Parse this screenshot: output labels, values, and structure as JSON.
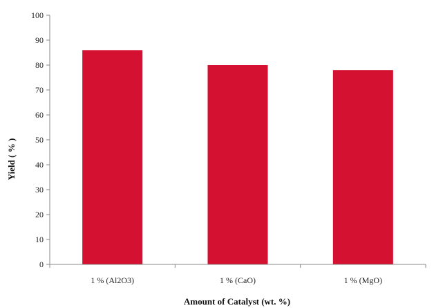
{
  "chart_data": {
    "type": "bar",
    "categories": [
      "1 % (Al2O3)",
      "1 % (CaO)",
      "1 % (MgO)"
    ],
    "values": [
      86,
      80,
      78
    ],
    "title": "",
    "xlabel": "Amount of Catalyst (wt. %)",
    "ylabel": "Yield ( % )",
    "ylim": [
      0,
      100
    ],
    "yticks": [
      0,
      10,
      20,
      30,
      40,
      50,
      60,
      70,
      80,
      90,
      100
    ],
    "grid": false,
    "legend": "none",
    "bar_color": "#d41130",
    "axis_color": "#888888"
  }
}
